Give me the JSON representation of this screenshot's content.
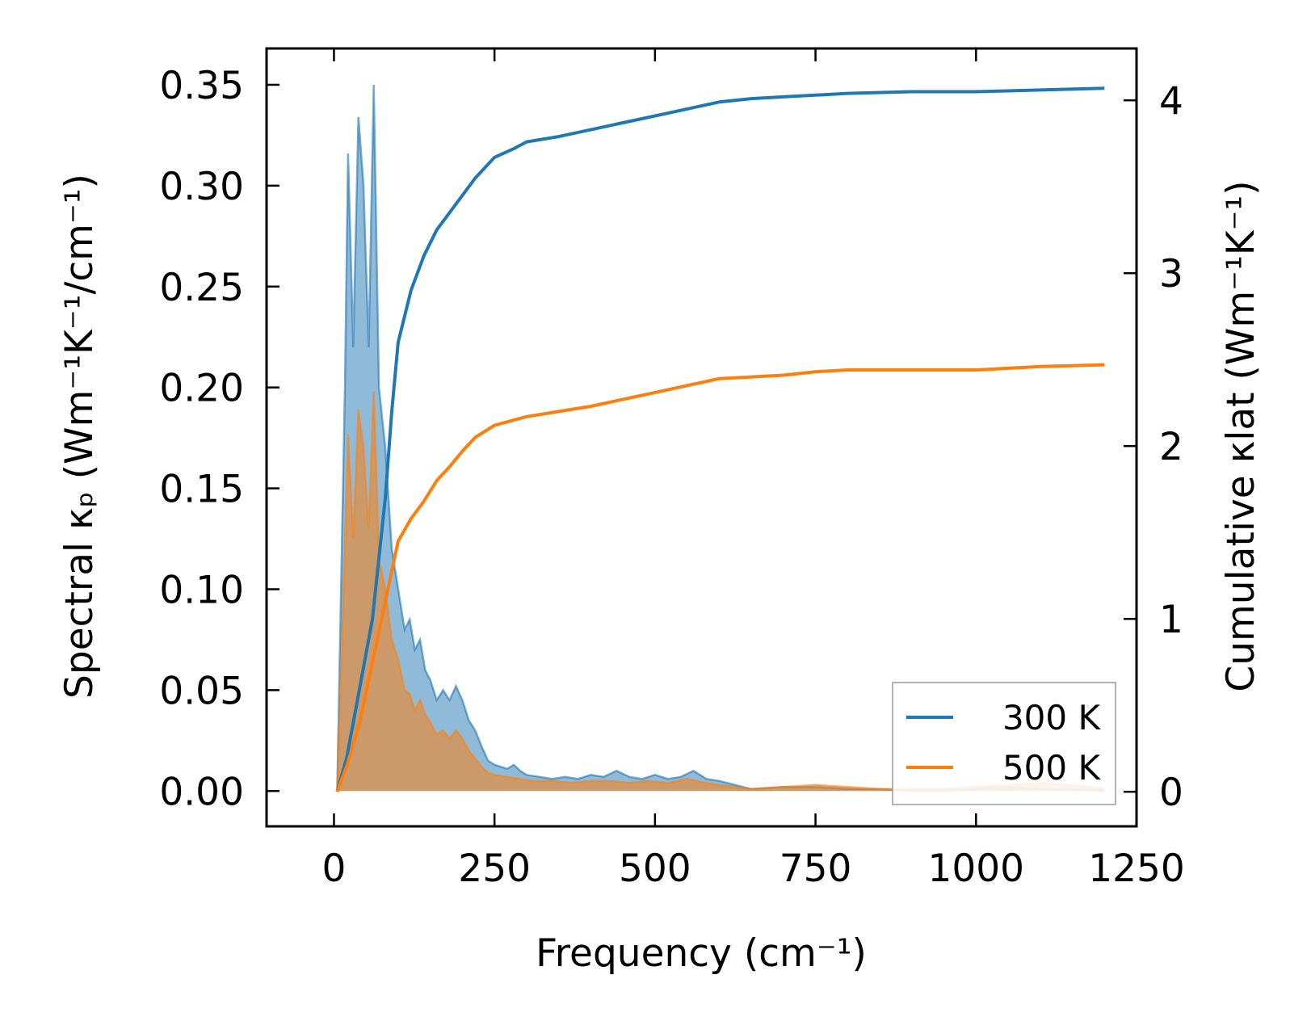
{
  "chart_data": {
    "type": "line",
    "xlabel": "Frequency (cm⁻¹)",
    "ylabel_left": "Spectral κₚ (Wm⁻¹K⁻¹/cm⁻¹)",
    "ylabel_right": "Cumulative κlat (Wm⁻¹K⁻¹)",
    "xlim": [
      -105,
      1250
    ],
    "ylim_left": [
      -0.0175,
      0.368
    ],
    "ylim_right": [
      -0.2,
      4.3
    ],
    "x_ticks": [
      0,
      250,
      500,
      750,
      1000,
      1250
    ],
    "x_tick_labels": [
      "0",
      "250",
      "500",
      "750",
      "1000",
      "1250"
    ],
    "y_left_ticks": [
      0,
      0.05,
      0.1,
      0.15,
      0.2,
      0.25,
      0.3,
      0.35
    ],
    "y_left_tick_labels": [
      "0.00",
      "0.05",
      "0.10",
      "0.15",
      "0.20",
      "0.25",
      "0.30",
      "0.35"
    ],
    "y_right_ticks": [
      0,
      1,
      2,
      3,
      4
    ],
    "y_right_tick_labels": [
      "0",
      "1",
      "2",
      "3",
      "4"
    ],
    "legend_position": "lower-right",
    "series": [
      {
        "name": "300 K",
        "color": "#1f77b4",
        "spectral": [
          [
            5,
            0
          ],
          [
            17,
            0.2
          ],
          [
            22,
            0.316
          ],
          [
            30,
            0.22
          ],
          [
            38,
            0.334
          ],
          [
            46,
            0.3
          ],
          [
            54,
            0.22
          ],
          [
            62,
            0.35
          ],
          [
            70,
            0.2
          ],
          [
            80,
            0.17
          ],
          [
            90,
            0.12
          ],
          [
            100,
            0.1
          ],
          [
            110,
            0.08
          ],
          [
            118,
            0.085
          ],
          [
            126,
            0.07
          ],
          [
            134,
            0.075
          ],
          [
            142,
            0.06
          ],
          [
            150,
            0.055
          ],
          [
            160,
            0.045
          ],
          [
            170,
            0.05
          ],
          [
            180,
            0.045
          ],
          [
            190,
            0.052
          ],
          [
            200,
            0.045
          ],
          [
            210,
            0.035
          ],
          [
            220,
            0.03
          ],
          [
            230,
            0.022
          ],
          [
            240,
            0.015
          ],
          [
            250,
            0.013
          ],
          [
            260,
            0.012
          ],
          [
            270,
            0.011
          ],
          [
            280,
            0.013
          ],
          [
            290,
            0.01
          ],
          [
            300,
            0.008
          ],
          [
            320,
            0.007
          ],
          [
            340,
            0.006
          ],
          [
            360,
            0.007
          ],
          [
            380,
            0.006
          ],
          [
            400,
            0.008
          ],
          [
            420,
            0.007
          ],
          [
            440,
            0.01
          ],
          [
            460,
            0.007
          ],
          [
            480,
            0.006
          ],
          [
            500,
            0.008
          ],
          [
            520,
            0.006
          ],
          [
            540,
            0.007
          ],
          [
            560,
            0.01
          ],
          [
            580,
            0.006
          ],
          [
            600,
            0.005
          ],
          [
            625,
            0.003
          ],
          [
            650,
            0.001
          ],
          [
            700,
            0.002
          ],
          [
            750,
            0.002
          ],
          [
            800,
            0.001
          ],
          [
            850,
            0.001
          ],
          [
            900,
            0
          ],
          [
            950,
            0
          ],
          [
            1000,
            0.001
          ],
          [
            1050,
            0.002
          ],
          [
            1100,
            0.001
          ],
          [
            1150,
            0.001
          ],
          [
            1200,
            0
          ]
        ],
        "cumulative": [
          [
            5,
            0
          ],
          [
            20,
            0.2
          ],
          [
            40,
            0.6
          ],
          [
            60,
            1
          ],
          [
            80,
            1.7
          ],
          [
            90,
            2.2
          ],
          [
            100,
            2.6
          ],
          [
            120,
            2.9
          ],
          [
            140,
            3.1
          ],
          [
            160,
            3.25
          ],
          [
            180,
            3.35
          ],
          [
            200,
            3.45
          ],
          [
            220,
            3.55
          ],
          [
            250,
            3.67
          ],
          [
            280,
            3.72
          ],
          [
            300,
            3.76
          ],
          [
            350,
            3.79
          ],
          [
            400,
            3.83
          ],
          [
            450,
            3.87
          ],
          [
            500,
            3.91
          ],
          [
            550,
            3.95
          ],
          [
            600,
            3.99
          ],
          [
            650,
            4.01
          ],
          [
            700,
            4.02
          ],
          [
            750,
            4.03
          ],
          [
            800,
            4.04
          ],
          [
            900,
            4.05
          ],
          [
            1000,
            4.05
          ],
          [
            1100,
            4.06
          ],
          [
            1200,
            4.07
          ]
        ]
      },
      {
        "name": "500 K",
        "color": "#ff7f0e",
        "spectral": [
          [
            5,
            0
          ],
          [
            17,
            0.12
          ],
          [
            22,
            0.177
          ],
          [
            30,
            0.125
          ],
          [
            38,
            0.189
          ],
          [
            46,
            0.17
          ],
          [
            54,
            0.13
          ],
          [
            62,
            0.198
          ],
          [
            70,
            0.115
          ],
          [
            80,
            0.1
          ],
          [
            90,
            0.075
          ],
          [
            100,
            0.065
          ],
          [
            110,
            0.05
          ],
          [
            118,
            0.048
          ],
          [
            126,
            0.04
          ],
          [
            134,
            0.045
          ],
          [
            142,
            0.038
          ],
          [
            150,
            0.034
          ],
          [
            160,
            0.028
          ],
          [
            170,
            0.03
          ],
          [
            180,
            0.026
          ],
          [
            190,
            0.03
          ],
          [
            200,
            0.026
          ],
          [
            210,
            0.02
          ],
          [
            220,
            0.016
          ],
          [
            230,
            0.012
          ],
          [
            240,
            0.009
          ],
          [
            250,
            0.008
          ],
          [
            270,
            0.007
          ],
          [
            290,
            0.006
          ],
          [
            310,
            0.005
          ],
          [
            340,
            0.005
          ],
          [
            370,
            0.004
          ],
          [
            400,
            0.005
          ],
          [
            430,
            0.005
          ],
          [
            460,
            0.004
          ],
          [
            490,
            0.005
          ],
          [
            520,
            0.004
          ],
          [
            550,
            0.006
          ],
          [
            580,
            0.004
          ],
          [
            600,
            0.003
          ],
          [
            625,
            0.002
          ],
          [
            650,
            0.001
          ],
          [
            700,
            0.002
          ],
          [
            750,
            0.003
          ],
          [
            800,
            0.002
          ],
          [
            850,
            0.001
          ],
          [
            900,
            0.001
          ],
          [
            950,
            0.001
          ],
          [
            1000,
            0.002
          ],
          [
            1050,
            0.003
          ],
          [
            1100,
            0.004
          ],
          [
            1150,
            0.003
          ],
          [
            1200,
            0.001
          ]
        ],
        "cumulative": [
          [
            5,
            0
          ],
          [
            20,
            0.15
          ],
          [
            40,
            0.4
          ],
          [
            60,
            0.75
          ],
          [
            80,
            1.1
          ],
          [
            100,
            1.45
          ],
          [
            120,
            1.58
          ],
          [
            140,
            1.68
          ],
          [
            160,
            1.8
          ],
          [
            180,
            1.88
          ],
          [
            200,
            1.97
          ],
          [
            220,
            2.05
          ],
          [
            250,
            2.12
          ],
          [
            300,
            2.17
          ],
          [
            350,
            2.2
          ],
          [
            400,
            2.23
          ],
          [
            450,
            2.27
          ],
          [
            500,
            2.31
          ],
          [
            550,
            2.35
          ],
          [
            600,
            2.39
          ],
          [
            650,
            2.4
          ],
          [
            700,
            2.41
          ],
          [
            750,
            2.43
          ],
          [
            800,
            2.44
          ],
          [
            900,
            2.44
          ],
          [
            1000,
            2.44
          ],
          [
            1100,
            2.46
          ],
          [
            1200,
            2.47
          ]
        ]
      }
    ]
  }
}
